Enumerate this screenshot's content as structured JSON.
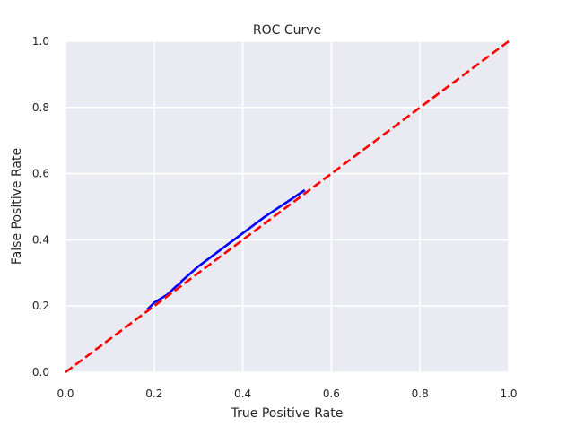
{
  "chart_data": {
    "type": "line",
    "title": "ROC Curve",
    "xlabel": "True Positive Rate",
    "ylabel": "False Positive Rate",
    "xlim": [
      0.0,
      1.0
    ],
    "ylim": [
      0.0,
      1.0
    ],
    "xticks": [
      "0.0",
      "0.2",
      "0.4",
      "0.6",
      "0.8",
      "1.0"
    ],
    "yticks": [
      "0.0",
      "0.2",
      "0.4",
      "0.6",
      "0.8",
      "1.0"
    ],
    "grid": true,
    "background": "#eaeaf2",
    "series": [
      {
        "color": "#0000ff",
        "style": "solid",
        "x": [
          0.54,
          0.45,
          0.38,
          0.3,
          0.262,
          0.26,
          0.25,
          0.23,
          0.2,
          0.185
        ],
        "y": [
          0.55,
          0.47,
          0.4,
          0.32,
          0.275,
          0.27,
          0.26,
          0.235,
          0.21,
          0.19
        ]
      },
      {
        "color": "#ff0000",
        "style": "dashed",
        "x": [
          0.0,
          1.0
        ],
        "y": [
          0.0,
          1.0
        ]
      }
    ]
  }
}
